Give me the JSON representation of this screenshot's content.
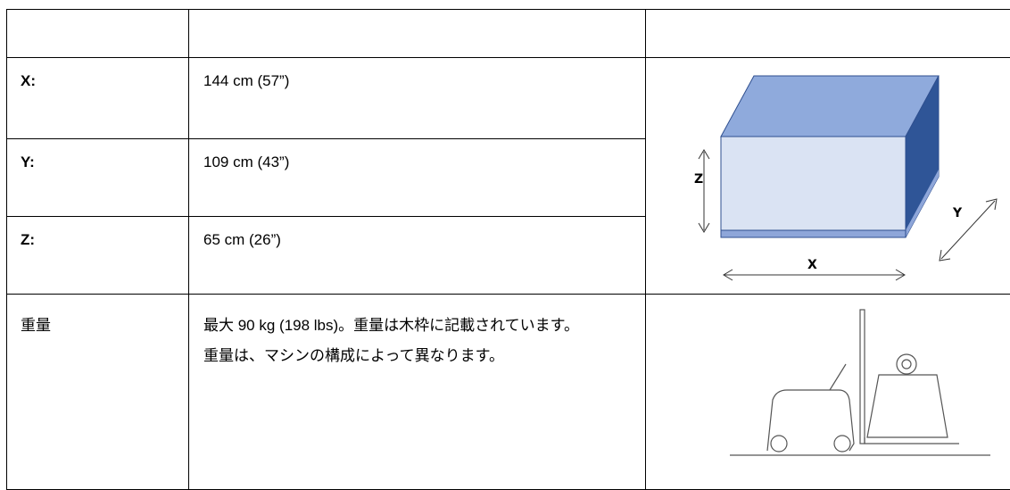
{
  "table": {
    "rows": [
      {
        "label": "X:",
        "value": "144 cm (57”)"
      },
      {
        "label": "Y:",
        "value": "109 cm (43”)"
      },
      {
        "label": "Z:",
        "value": "65 cm (26”)"
      }
    ],
    "weight": {
      "label": "重量",
      "paragraphs": [
        "最大 90 kg (198 lbs)。重量は木枠に記載されています。",
        "重量は、マシンの構成によって異なります。"
      ]
    }
  },
  "diagram": {
    "z_label": "Z",
    "y_label": "Y",
    "x_label": "X"
  }
}
